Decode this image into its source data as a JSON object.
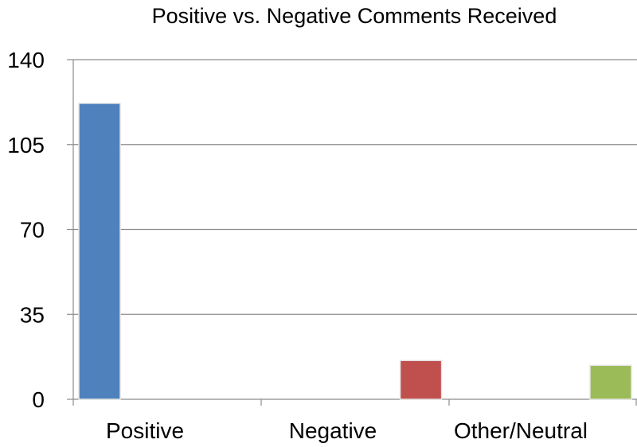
{
  "chart_data": {
    "type": "bar",
    "title": "Positive vs. Negative Comments Received",
    "xlabel": "",
    "ylabel": "",
    "categories": [
      "Positive",
      "Negative",
      "Other/Neutral"
    ],
    "values": [
      122,
      16,
      14
    ],
    "colors": [
      "#4f81bd",
      "#c0504d",
      "#9bbb59"
    ],
    "ylim": [
      0,
      140
    ],
    "yticks": [
      "0",
      "35",
      "70",
      "105",
      "140"
    ],
    "grid": true,
    "legend": "none"
  }
}
